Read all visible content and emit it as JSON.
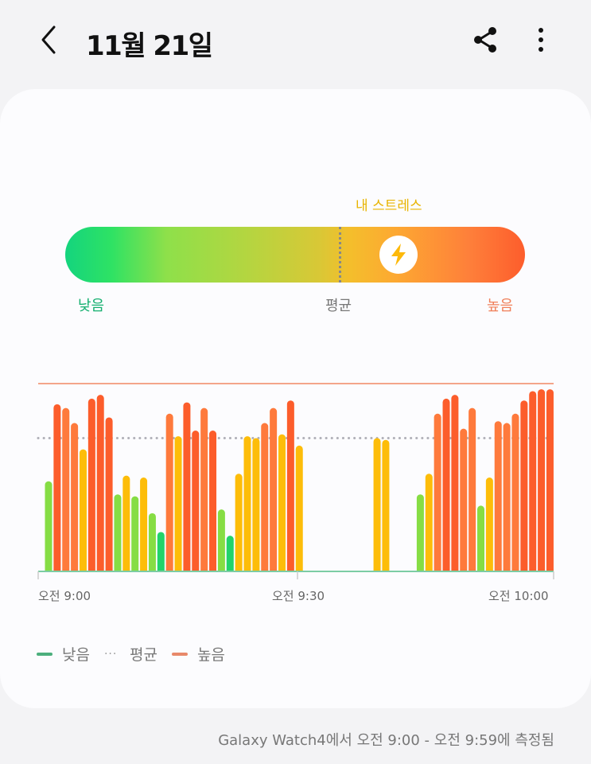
{
  "header": {
    "title": "11월 21일",
    "back_icon": "chevron-left-icon",
    "share_icon": "share-icon",
    "more_icon": "more-vertical-icon"
  },
  "gauge": {
    "my_stress_label": "내 스트레스",
    "low_label": "낮음",
    "avg_label": "평균",
    "high_label": "높음",
    "icon": "lightning-icon",
    "my_stress_percent": 72,
    "average_percent": 60
  },
  "chart_data": {
    "type": "bar",
    "x_ticks": [
      "오전 9:00",
      "오전 9:30",
      "오전 10:00"
    ],
    "x_unit": "minute after 9:00",
    "xlim": [
      0,
      60
    ],
    "ylim": [
      0,
      100
    ],
    "average_line": 71,
    "high_line": 100,
    "colors": {
      "very_low": "#22d36a",
      "low": "#86dd44",
      "medium": "#fdbd09",
      "high": "#fe7a3c",
      "very_high": "#fc5d2b",
      "high_line": "#f4a58a",
      "baseline": "#7ccca4",
      "average_line": "#b0b0b8"
    },
    "bars": [
      [
        0,
        48,
        "low"
      ],
      [
        1,
        89,
        "very_high"
      ],
      [
        2,
        87,
        "high"
      ],
      [
        3,
        79,
        "high"
      ],
      [
        4,
        65,
        "medium"
      ],
      [
        5,
        92,
        "very_high"
      ],
      [
        6,
        94,
        "very_high"
      ],
      [
        7,
        82,
        "very_high"
      ],
      [
        8,
        41,
        "low"
      ],
      [
        9,
        51,
        "medium"
      ],
      [
        10,
        40,
        "low"
      ],
      [
        11,
        50,
        "medium"
      ],
      [
        12,
        31,
        "low"
      ],
      [
        13,
        21,
        "very_low"
      ],
      [
        14,
        84,
        "high"
      ],
      [
        15,
        72,
        "medium"
      ],
      [
        16,
        90,
        "very_high"
      ],
      [
        17,
        75,
        "very_high"
      ],
      [
        18,
        87,
        "high"
      ],
      [
        19,
        75,
        "very_high"
      ],
      [
        20,
        33,
        "low"
      ],
      [
        21,
        19,
        "very_low"
      ],
      [
        22,
        52,
        "medium"
      ],
      [
        23,
        72,
        "medium"
      ],
      [
        24,
        71,
        "medium"
      ],
      [
        25,
        79,
        "high"
      ],
      [
        26,
        87,
        "high"
      ],
      [
        27,
        73,
        "medium"
      ],
      [
        28,
        91,
        "very_high"
      ],
      [
        29,
        67,
        "medium"
      ],
      [
        38,
        71,
        "medium"
      ],
      [
        39,
        70,
        "medium"
      ],
      [
        43,
        41,
        "low"
      ],
      [
        44,
        52,
        "medium"
      ],
      [
        45,
        84,
        "high"
      ],
      [
        46,
        92,
        "very_high"
      ],
      [
        47,
        94,
        "very_high"
      ],
      [
        48,
        76,
        "high"
      ],
      [
        49,
        87,
        "high"
      ],
      [
        50,
        35,
        "low"
      ],
      [
        51,
        50,
        "medium"
      ],
      [
        52,
        80,
        "high"
      ],
      [
        53,
        79,
        "high"
      ],
      [
        54,
        84,
        "high"
      ],
      [
        55,
        91,
        "very_high"
      ],
      [
        56,
        96,
        "very_high"
      ],
      [
        57,
        97,
        "very_high"
      ],
      [
        58,
        97,
        "very_high"
      ]
    ]
  },
  "legend": {
    "low": "낮음",
    "avg": "평균",
    "high": "높음",
    "low_color": "#4caf7d",
    "high_color": "#e8896a"
  },
  "footer": "Galaxy Watch4에서 오전 9:00 - 오전 9:59에 측정됨"
}
